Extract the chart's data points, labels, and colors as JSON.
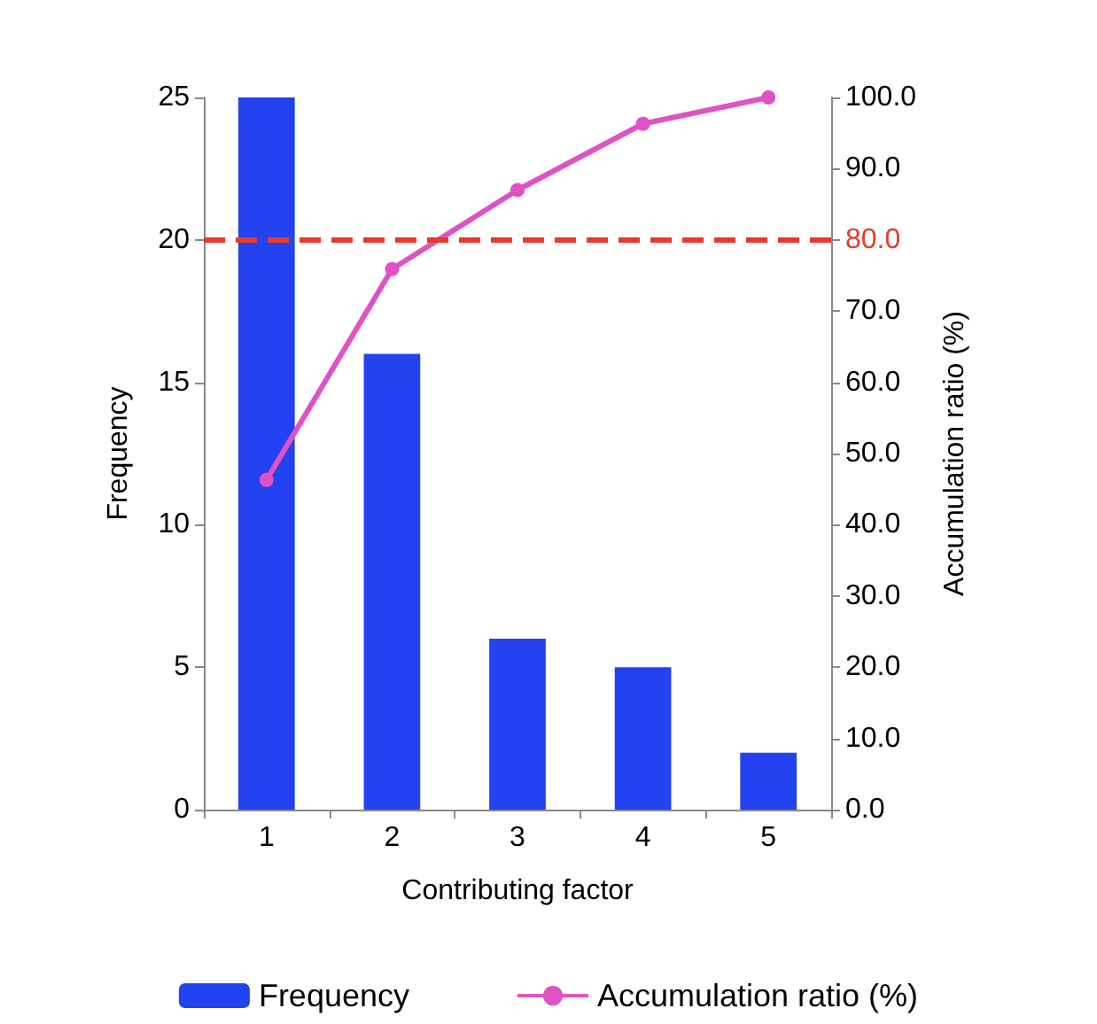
{
  "chart_data": {
    "type": "bar",
    "xlabel": "Contributing factor",
    "ylabel": "Frequency",
    "y2label": "Accumulation ratio (%)",
    "categories": [
      "1",
      "2",
      "3",
      "4",
      "5"
    ],
    "series": [
      {
        "name": "Frequency",
        "type": "bar",
        "color": "#2342f2",
        "values": [
          25,
          16,
          6,
          5,
          2
        ]
      },
      {
        "name": "Accumulation ratio (%)",
        "type": "line",
        "axis": "y2",
        "color": "#e052c4",
        "values": [
          46.3,
          75.9,
          87.0,
          96.3,
          100.0
        ]
      }
    ],
    "ylim": [
      0,
      25
    ],
    "yticks": [
      0,
      5,
      10,
      15,
      20,
      25
    ],
    "y2lim": [
      0,
      100
    ],
    "y2ticks": [
      {
        "value": 0,
        "label": "0.0"
      },
      {
        "value": 10,
        "label": "10.0"
      },
      {
        "value": 20,
        "label": "20.0"
      },
      {
        "value": 30,
        "label": "30.0"
      },
      {
        "value": 40,
        "label": "40.0"
      },
      {
        "value": 50,
        "label": "50.0"
      },
      {
        "value": 60,
        "label": "60.0"
      },
      {
        "value": 70,
        "label": "70.0"
      },
      {
        "value": 80,
        "label": "80.0"
      },
      {
        "value": 90,
        "label": "90.0"
      },
      {
        "value": 100,
        "label": "100.0"
      }
    ],
    "ref_lines": [
      {
        "axis": "y2",
        "value": 80,
        "label": null,
        "color": "#e8392a",
        "line_style": "dashed"
      }
    ],
    "marker": "circle",
    "grid": false,
    "legend": "bottom"
  }
}
